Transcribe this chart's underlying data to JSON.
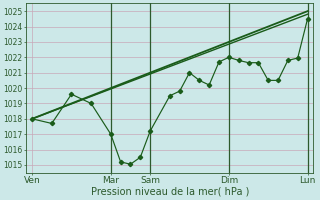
{
  "xlabel": "Pression niveau de la mer( hPa )",
  "bg_color": "#cce8e8",
  "grid_color": "#c8a8b8",
  "line_color": "#1a5c1a",
  "dark_line_color": "#2d5a2d",
  "ylim": [
    1014.5,
    1025.5
  ],
  "yticks": [
    1015,
    1016,
    1017,
    1018,
    1019,
    1020,
    1021,
    1022,
    1023,
    1024,
    1025
  ],
  "xlim": [
    -0.3,
    14.3
  ],
  "xtick_labels": [
    "Ven",
    "Mar",
    "Sam",
    "Dim",
    "Lun"
  ],
  "xtick_positions": [
    0,
    4,
    6,
    10,
    14
  ],
  "vlines": [
    4,
    6,
    10,
    14
  ],
  "line1_x": [
    0,
    14
  ],
  "line1_y": [
    1018.0,
    1024.8
  ],
  "line2_x": [
    0,
    14
  ],
  "line2_y": [
    1018.0,
    1025.0
  ],
  "line3_x": [
    0,
    1,
    2,
    3,
    4,
    4.5,
    5,
    5.5,
    6,
    7,
    7.5,
    8,
    8.5,
    9,
    9.5,
    10,
    10.5,
    11,
    11.5,
    12,
    12.5,
    13,
    13.5,
    14
  ],
  "line3_y": [
    1018.0,
    1017.7,
    1019.6,
    1019.0,
    1017.0,
    1015.2,
    1015.05,
    1015.5,
    1017.2,
    1019.5,
    1019.8,
    1021.0,
    1020.5,
    1020.2,
    1021.7,
    1022.0,
    1021.8,
    1021.65,
    1021.65,
    1020.5,
    1020.5,
    1021.8,
    1021.95,
    1024.5
  ],
  "ytick_fontsize": 5.5,
  "xtick_fontsize": 6.5,
  "xlabel_fontsize": 7.0
}
